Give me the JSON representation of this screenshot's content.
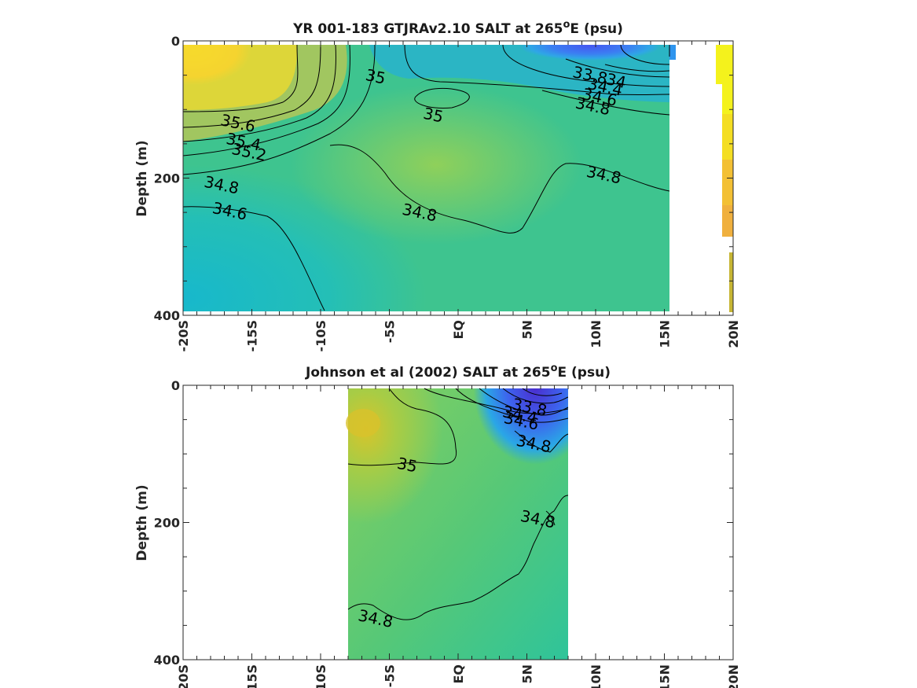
{
  "chart_data": [
    {
      "type": "heatmap",
      "title_prefix": "YR 001-183 GTJRAv2.10 SALT at 265",
      "title_superscript": "o",
      "title_suffix": "E (psu)",
      "ylabel": "Depth (m)",
      "xlabel": "",
      "x_ticks": [
        "-20S",
        "-15S",
        "-10S",
        "-5S",
        "EQ",
        "5N",
        "10N",
        "15N",
        "20N"
      ],
      "y_ticks": [
        "0",
        "200",
        "400"
      ],
      "xlim": [
        -20,
        20
      ],
      "ylim": [
        0,
        400
      ],
      "data_extent_lat": [
        -20,
        15.5
      ],
      "contour_levels": [
        33.8,
        34,
        34.4,
        34.6,
        34.8,
        35,
        35.2,
        35.4,
        35.6
      ],
      "contour_labels": [
        {
          "text": "35.6",
          "lat": -16.0,
          "depth": 120
        },
        {
          "text": "35.4",
          "lat": -15.6,
          "depth": 147
        },
        {
          "text": "35.2",
          "lat": -15.2,
          "depth": 162
        },
        {
          "text": "34.8",
          "lat": -17.2,
          "depth": 210
        },
        {
          "text": "34.6",
          "lat": -16.6,
          "depth": 248
        },
        {
          "text": "35",
          "lat": -6.0,
          "depth": 52
        },
        {
          "text": "35",
          "lat": -1.8,
          "depth": 108
        },
        {
          "text": "34.8",
          "lat": -2.8,
          "depth": 250
        },
        {
          "text": "33.8",
          "lat": 9.6,
          "depth": 50
        },
        {
          "text": "34",
          "lat": 11.5,
          "depth": 58
        },
        {
          "text": "34.4",
          "lat": 10.7,
          "depth": 67
        },
        {
          "text": "34.6",
          "lat": 10.3,
          "depth": 82
        },
        {
          "text": "34.8",
          "lat": 9.8,
          "depth": 95
        },
        {
          "text": "34.8",
          "lat": 10.6,
          "depth": 195
        }
      ]
    },
    {
      "type": "heatmap",
      "title_prefix": "Johnson et al (2002) SALT at 265",
      "title_superscript": "o",
      "title_suffix": "E (psu)",
      "ylabel": "Depth (m)",
      "xlabel": "",
      "x_ticks": [
        "-20S",
        "-15S",
        "-10S",
        "-5S",
        "EQ",
        "5N",
        "10N",
        "15N",
        "20N"
      ],
      "y_ticks": [
        "0",
        "200",
        "400"
      ],
      "xlim": [
        -20,
        20
      ],
      "ylim": [
        0,
        400
      ],
      "data_extent_lat": [
        -8,
        8
      ],
      "contour_levels": [
        33.8,
        34,
        34.4,
        34.6,
        34.8,
        35
      ],
      "contour_labels": [
        {
          "text": "33.8",
          "lat": 5.2,
          "depth": 32
        },
        {
          "text": "34.4",
          "lat": 4.5,
          "depth": 43
        },
        {
          "text": "34.6",
          "lat": 4.6,
          "depth": 52
        },
        {
          "text": "34.8",
          "lat": 5.5,
          "depth": 85
        },
        {
          "text": "35",
          "lat": -3.7,
          "depth": 116
        },
        {
          "text": "34.8",
          "lat": 5.8,
          "depth": 195
        },
        {
          "text": "34.8",
          "lat": -6.0,
          "depth": 340
        }
      ]
    }
  ]
}
